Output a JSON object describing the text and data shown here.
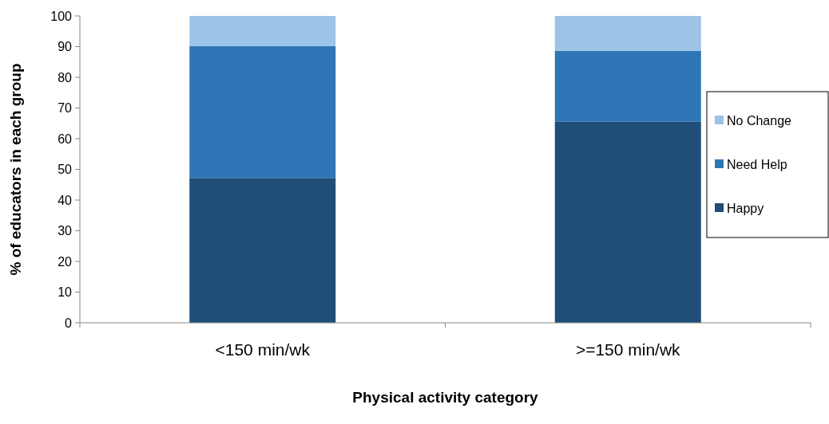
{
  "chart_data": {
    "type": "bar",
    "stacked": true,
    "xlabel": "Physical activity category",
    "ylabel": "% of educators in each group",
    "categories": [
      "<150 min/wk",
      ">=150 min/wk"
    ],
    "series": [
      {
        "name": "Happy",
        "color": "#1f4e79",
        "values": [
          47.2,
          65.5
        ]
      },
      {
        "name": "Need Help",
        "color": "#2e75b6",
        "values": [
          43,
          23.1
        ]
      },
      {
        "name": "No Change",
        "color": "#9dc3e6",
        "values": [
          9.8,
          11.4
        ]
      }
    ],
    "ylim": [
      0,
      100
    ],
    "yticks": [
      0,
      10,
      20,
      30,
      40,
      50,
      60,
      70,
      80,
      90,
      100
    ],
    "grid": false,
    "legend": "right"
  }
}
